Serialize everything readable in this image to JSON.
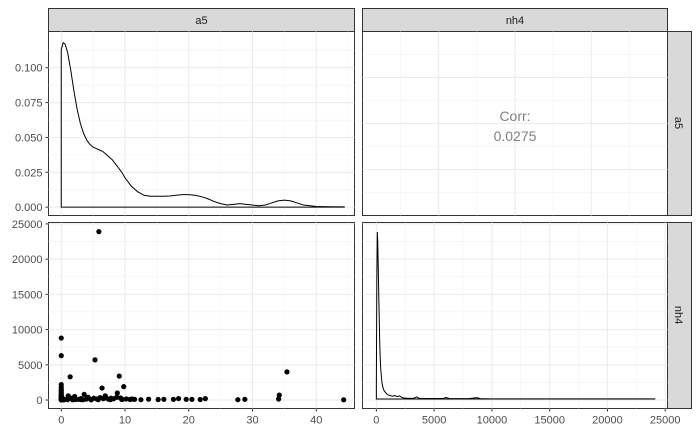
{
  "chart_data": {
    "type": "scatter",
    "variables": [
      "a5",
      "nh4"
    ],
    "column_strips": [
      "a5",
      "nh4"
    ],
    "row_strips": [
      "a5",
      "nh4"
    ],
    "a5_axis": {
      "range": [
        -2,
        46
      ],
      "ticks": [
        "0",
        "10",
        "20",
        "30",
        "40"
      ],
      "tick_values": [
        0,
        10,
        20,
        30,
        40
      ]
    },
    "nh4_axis": {
      "range": [
        -1200,
        25200
      ],
      "ticks": [
        "0",
        "5000",
        "10000",
        "15000",
        "20000",
        "25000"
      ],
      "tick_values": [
        0,
        5000,
        10000,
        15000,
        20000,
        25000
      ]
    },
    "density_a5_axis": {
      "range": [
        -0.006,
        0.126
      ],
      "ticks": [
        "0.000",
        "0.025",
        "0.050",
        "0.075",
        "0.100"
      ],
      "tick_values": [
        0,
        0.025,
        0.05,
        0.075,
        0.1
      ]
    },
    "nh4_x_axis": {
      "ticks": [
        "0",
        "5000",
        "10000",
        "15000",
        "20000",
        "25000"
      ],
      "tick_values": [
        0,
        5000,
        10000,
        15000,
        20000,
        25000
      ]
    },
    "panels": {
      "top_left": {
        "type": "density",
        "variable": "a5",
        "x": [
          0,
          0.3,
          0.6,
          1,
          1.5,
          2,
          2.5,
          3,
          3.5,
          4,
          4.5,
          5,
          5.5,
          6,
          6.5,
          7,
          7.5,
          8,
          8.5,
          9,
          9.5,
          10,
          11,
          12,
          13,
          14,
          15,
          16,
          17,
          18,
          19,
          20,
          21,
          22,
          23,
          24,
          25,
          26,
          27,
          28,
          29,
          30,
          31,
          32,
          33,
          34,
          35,
          36,
          37,
          38,
          40,
          42,
          44.4
        ],
        "y": [
          0.113,
          0.118,
          0.117,
          0.111,
          0.098,
          0.083,
          0.07,
          0.06,
          0.053,
          0.048,
          0.045,
          0.043,
          0.042,
          0.041,
          0.04,
          0.038,
          0.036,
          0.034,
          0.031,
          0.028,
          0.025,
          0.021,
          0.015,
          0.011,
          0.0085,
          0.0078,
          0.0078,
          0.0078,
          0.008,
          0.0085,
          0.009,
          0.009,
          0.0085,
          0.0075,
          0.006,
          0.004,
          0.0025,
          0.0015,
          0.002,
          0.0025,
          0.002,
          0.0015,
          0.001,
          0.0015,
          0.003,
          0.0045,
          0.005,
          0.0045,
          0.003,
          0.0015,
          0.0005,
          0.0003,
          0.0002
        ]
      },
      "top_right": {
        "type": "text",
        "label": "Corr:",
        "value": "0.0275"
      },
      "bottom_left": {
        "type": "scatter",
        "x": [
          5.9,
          0,
          0,
          35.4,
          5.3,
          9.1,
          1.4,
          6.4,
          9.8,
          0,
          0,
          0,
          0,
          0,
          0,
          0,
          0,
          0,
          0,
          0,
          0,
          0.5,
          1,
          1.5,
          2,
          2.3,
          2.8,
          3.1,
          3.4,
          3.9,
          4.2,
          4.6,
          5.1,
          5.6,
          6.1,
          6.6,
          7,
          7.4,
          7.8,
          8.2,
          8.7,
          9.3,
          9.6,
          10.2,
          10.8,
          11.5,
          12.5,
          13.7,
          15.2,
          16.1,
          17.6,
          18.4,
          19.6,
          20.5,
          21.8,
          22.6,
          27.7,
          28.8,
          34.2,
          34.1,
          44.3,
          1.1,
          2.1,
          3.6,
          6.9,
          8.8,
          11.1,
          0,
          0,
          0,
          3.2,
          4.7,
          7.7,
          5.8,
          9.5,
          0.4,
          1.8
        ],
        "y": [
          23900,
          8800,
          6300,
          4000,
          5700,
          3400,
          3300,
          1700,
          1900,
          2200,
          1800,
          1500,
          1300,
          1100,
          900,
          700,
          500,
          350,
          200,
          100,
          20,
          120,
          60,
          250,
          150,
          80,
          100,
          200,
          50,
          120,
          400,
          100,
          250,
          150,
          350,
          200,
          300,
          120,
          250,
          180,
          400,
          300,
          100,
          150,
          80,
          100,
          50,
          120,
          80,
          100,
          100,
          200,
          100,
          100,
          80,
          200,
          50,
          100,
          700,
          150,
          30,
          600,
          500,
          800,
          600,
          1000,
          150,
          30,
          600,
          400,
          50,
          30,
          60,
          50,
          80,
          20,
          40
        ]
      },
      "bottom_right": {
        "type": "density",
        "variable": "nh4",
        "x": [
          0,
          40,
          80,
          120,
          160,
          200,
          240,
          280,
          320,
          360,
          400,
          450,
          500,
          560,
          630,
          700,
          800,
          900,
          1000,
          1200,
          1400,
          1600,
          1800,
          2000,
          2200,
          2400,
          2800,
          3200,
          3500,
          3700,
          4200,
          5000,
          5800,
          6000,
          6300,
          7000,
          8000,
          8700,
          9000,
          10000,
          12000,
          15000,
          18000,
          21000,
          23800,
          24100
        ],
        "y": [
          0.08,
          0.7,
          0.98,
          0.92,
          0.78,
          0.64,
          0.5,
          0.37,
          0.26,
          0.2,
          0.16,
          0.12,
          0.09,
          0.07,
          0.055,
          0.045,
          0.038,
          0.03,
          0.025,
          0.02,
          0.016,
          0.02,
          0.014,
          0.018,
          0.01,
          0.006,
          0.004,
          0.004,
          0.012,
          0.004,
          0.003,
          0.003,
          0.003,
          0.009,
          0.003,
          0.002,
          0.002,
          0.008,
          0.002,
          0.001,
          0.001,
          0.001,
          0.001,
          0.001,
          0.0005,
          0.0005
        ]
      }
    },
    "grid": true,
    "theme": "bw"
  }
}
